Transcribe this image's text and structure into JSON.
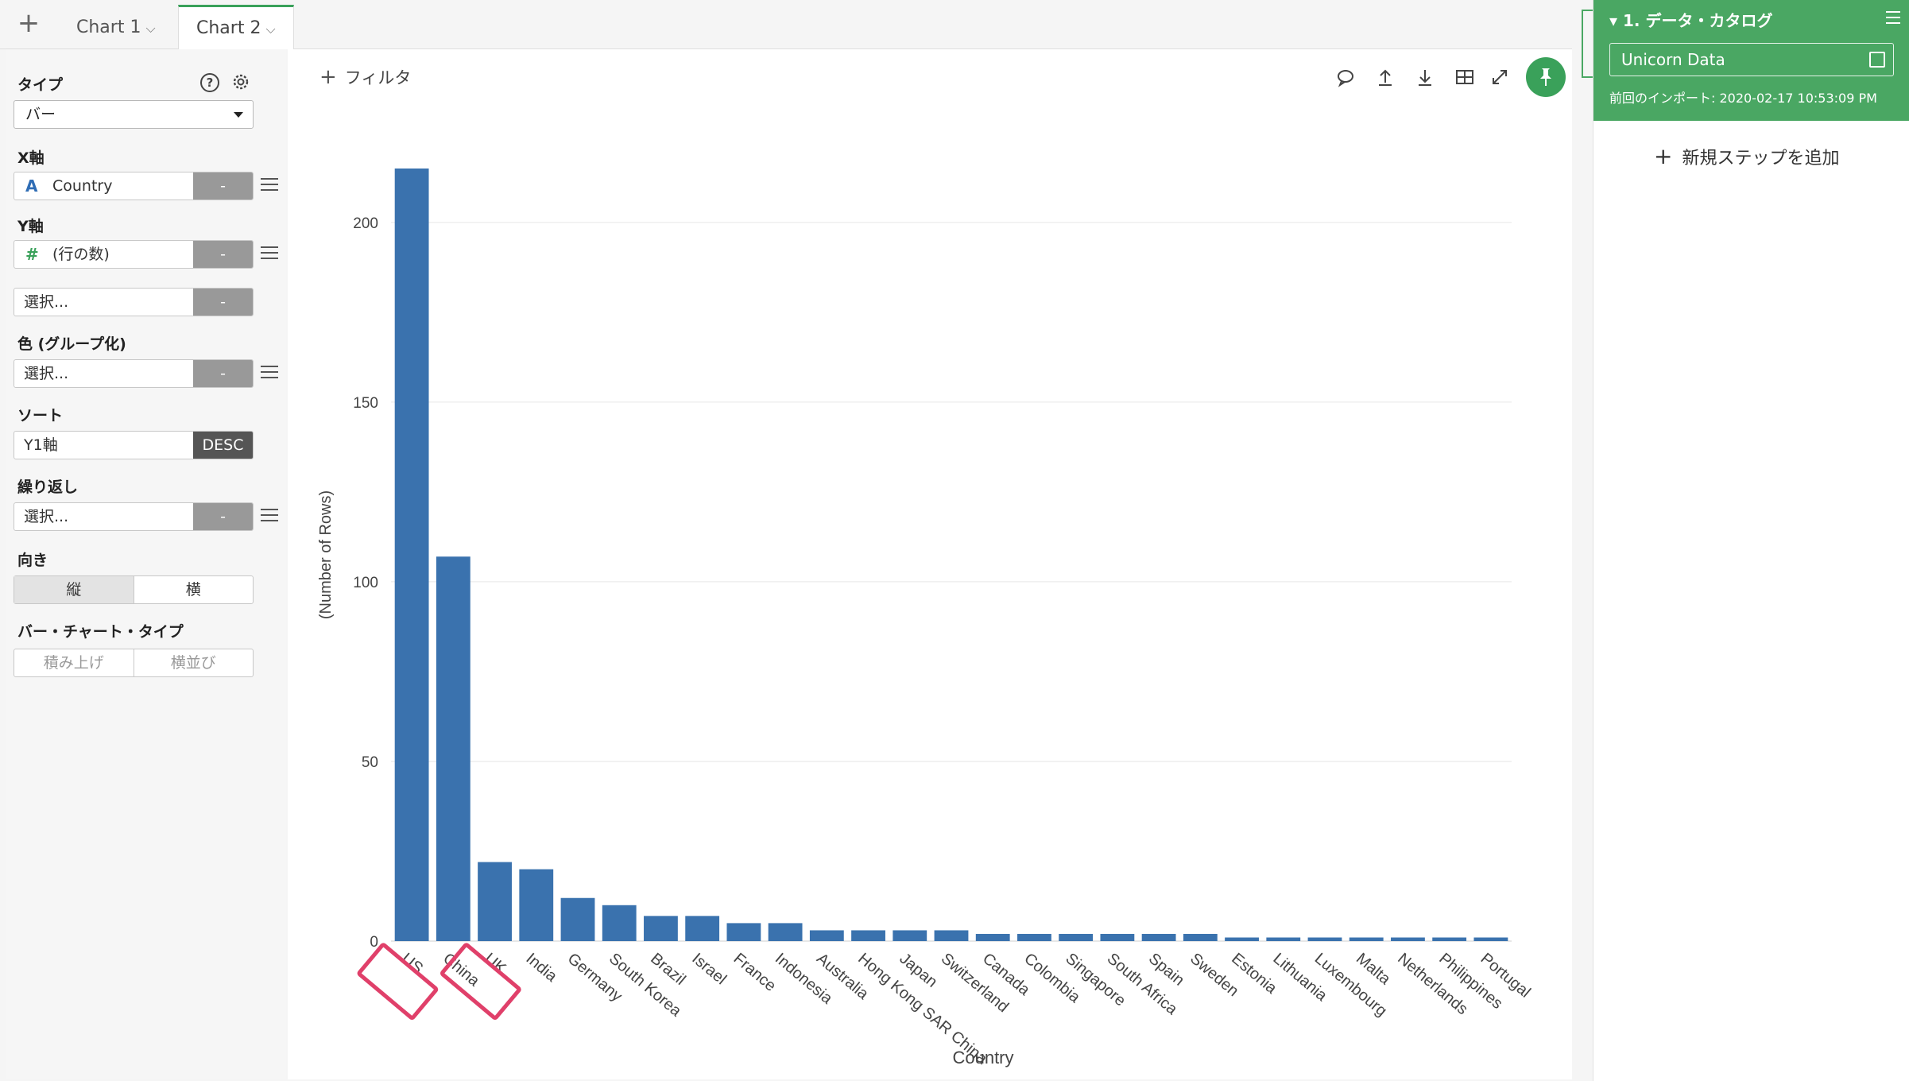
{
  "tabs": {
    "add": "+",
    "items": [
      {
        "label": "Chart 1",
        "chevron": "⌵"
      },
      {
        "label": "Chart 2",
        "chevron": "⌵"
      }
    ]
  },
  "config": {
    "type_label": "タイプ",
    "type_value": "バー",
    "help_icon": "?",
    "x_label": "X軸",
    "x_icon": "A",
    "x_value": "Country",
    "x_btn": "-",
    "y_label": "Y軸",
    "y_icon": "#",
    "y_value": "(行の数)",
    "y_btn": "-",
    "y2_value": "選択...",
    "y2_btn": "-",
    "color_label": "色 (グループ化)",
    "color_value": "選択...",
    "color_btn": "-",
    "sort_label": "ソート",
    "sort_value": "Y1軸",
    "sort_btn": "DESC",
    "repeat_label": "繰り返し",
    "repeat_value": "選択...",
    "repeat_btn": "-",
    "orient_label": "向き",
    "orient_vertical": "縦",
    "orient_horizontal": "横",
    "bartype_label": "バー・チャート・タイプ",
    "bartype_stacked": "積み上げ",
    "bartype_side": "横並び"
  },
  "toolbar": {
    "filter_plus": "+",
    "filter_label": "フィルタ",
    "icons": [
      "comment-icon",
      "upload-icon",
      "download-icon",
      "table-icon",
      "expand-icon",
      "pin-icon"
    ]
  },
  "chart_data": {
    "type": "bar",
    "xlabel": "Country",
    "ylabel": "(Number of Rows)",
    "ylim": [
      0,
      215
    ],
    "yticks": [
      0,
      50,
      100,
      150,
      200
    ],
    "grid": true,
    "color": "#3a72ae",
    "categories": [
      "US",
      "China",
      "UK",
      "India",
      "Germany",
      "South Korea",
      "Brazil",
      "Israel",
      "France",
      "Indonesia",
      "Australia",
      "Hong Kong SAR China",
      "Japan",
      "Switzerland",
      "Canada",
      "Colombia",
      "Singapore",
      "South Africa",
      "Spain",
      "Sweden",
      "Estonia",
      "Lithuania",
      "Luxembourg",
      "Malta",
      "Netherlands",
      "Philippines",
      "Portugal"
    ],
    "values": [
      215,
      107,
      22,
      20,
      12,
      10,
      7,
      7,
      5,
      5,
      3,
      3,
      3,
      3,
      2,
      2,
      2,
      2,
      2,
      2,
      1,
      1,
      1,
      1,
      1,
      1,
      1
    ],
    "highlight": [
      "US",
      "UK"
    ],
    "highlight_color": "#e0406a"
  },
  "right": {
    "step_title": "1. データ・カタログ",
    "data_name": "Unicorn Data",
    "imported": "前回のインポート: 2020-02-17 10:53:09 PM",
    "add_plus": "+",
    "add_step": "新規ステップを追加"
  }
}
